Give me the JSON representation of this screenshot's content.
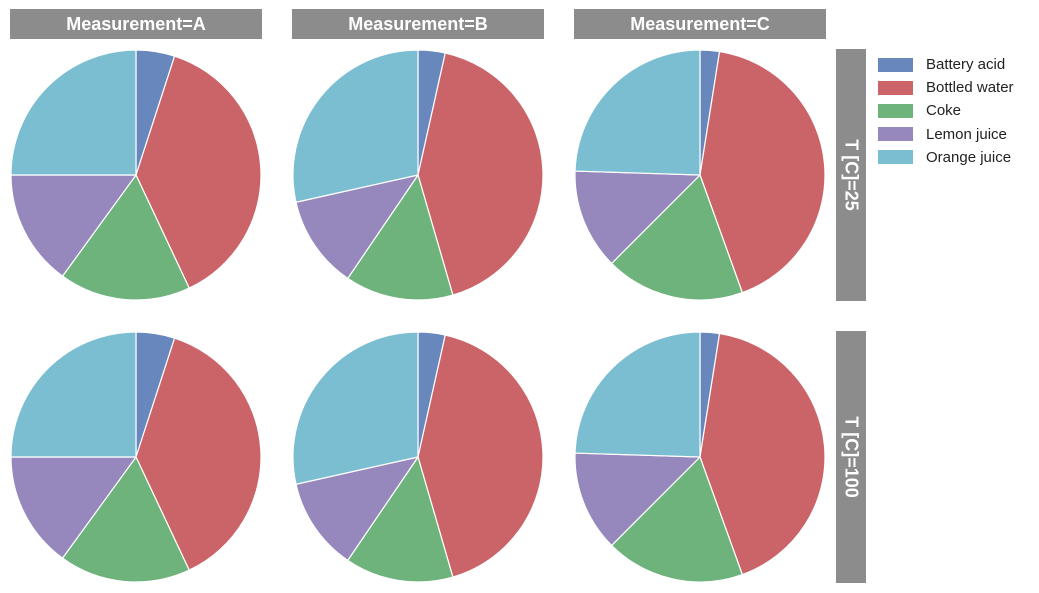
{
  "chart_data": {
    "type": "pie",
    "facet_col_label": "Measurement",
    "facet_row_label": "T [C]",
    "legend_entries": [
      "Battery acid",
      "Bottled water",
      "Coke",
      "Lemon juice",
      "Orange juice"
    ],
    "colors": [
      "#6887bd",
      "#cb6468",
      "#6db37b",
      "#9688bd",
      "#7bbed2"
    ],
    "column_titles": [
      "Measurement=A",
      "Measurement=B",
      "Measurement=C"
    ],
    "row_titles": [
      "T [C]=25",
      "T [C]=100"
    ],
    "panels": [
      {
        "row": "T [C]=25",
        "col": "Measurement=A",
        "values": [
          5,
          38,
          17,
          15,
          25
        ]
      },
      {
        "row": "T [C]=25",
        "col": "Measurement=B",
        "values": [
          3.5,
          42,
          14,
          12,
          28.5
        ]
      },
      {
        "row": "T [C]=25",
        "col": "Measurement=C",
        "values": [
          2.5,
          42,
          18,
          13,
          24.5
        ]
      },
      {
        "row": "T [C]=100",
        "col": "Measurement=A",
        "values": [
          5,
          38,
          17,
          15,
          25
        ]
      },
      {
        "row": "T [C]=100",
        "col": "Measurement=B",
        "values": [
          3.5,
          42,
          14,
          12,
          28.5
        ]
      },
      {
        "row": "T [C]=100",
        "col": "Measurement=C",
        "values": [
          2.5,
          42,
          18,
          13,
          24.5
        ]
      }
    ]
  }
}
